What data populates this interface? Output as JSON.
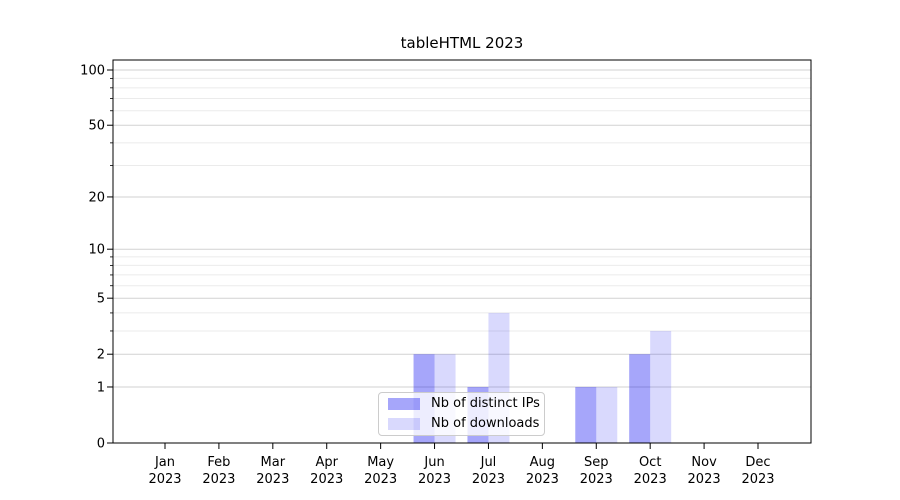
{
  "figure": {
    "title": "tableHTML 2023"
  },
  "chart_data": {
    "type": "bar",
    "title": "tableHTML 2023",
    "x": {
      "categories": [
        "Jan",
        "Feb",
        "Mar",
        "Apr",
        "May",
        "Jun",
        "Jul",
        "Aug",
        "Sep",
        "Oct",
        "Nov",
        "Dec"
      ],
      "year_label": "2023"
    },
    "series": [
      {
        "name": "Nb of distinct IPs",
        "color": "rgba(0,0,240,0.35)",
        "solid_color": "#a6a6f6",
        "values": [
          0,
          0,
          0,
          0,
          0,
          2,
          1,
          0,
          1,
          2,
          0,
          0
        ]
      },
      {
        "name": "Nb of downloads",
        "color": "rgba(0,0,240,0.15)",
        "solid_color": "#d9d9f9",
        "values": [
          0,
          0,
          0,
          0,
          0,
          2,
          4,
          0,
          1,
          3,
          0,
          0
        ]
      }
    ],
    "y_axis": {
      "scale": "log1p",
      "range": [
        0,
        113
      ],
      "top_labeled_tick": 100,
      "major_ticks": [
        0,
        1,
        2,
        5,
        10,
        20,
        50,
        100
      ],
      "minor_ticks": [
        3,
        4,
        6,
        7,
        8,
        9,
        30,
        40,
        60,
        70,
        80,
        90
      ]
    },
    "grid": {
      "major": true,
      "minor": true
    },
    "legend_position": "lower center",
    "style": {
      "grid_major_color": "#d2d2d2",
      "grid_minor_color": "#ebebeb",
      "spine_color": "#000000",
      "tick_label_color": "#000000",
      "background": "#ffffff"
    }
  }
}
